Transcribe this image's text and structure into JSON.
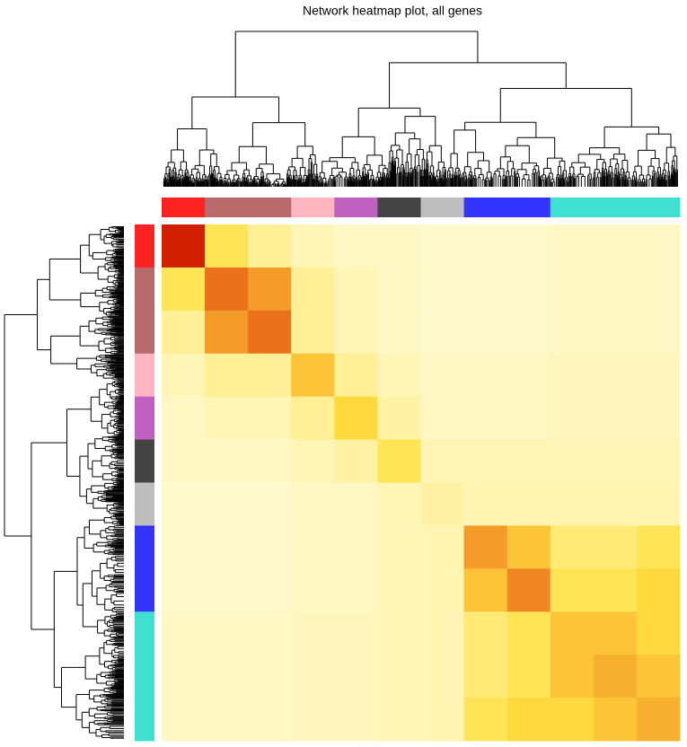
{
  "chart_data": {
    "type": "heatmap",
    "title": "Network heatmap plot, all genes",
    "colors": [
      "#ff2222",
      "#b86a6a",
      "#b86a6a",
      "#ffb6c1",
      "#c060c0",
      "#444444",
      "#bebebe",
      "#3333ff",
      "#3333ff",
      "#40e0d0",
      "#40e0d0",
      "#40e0d0"
    ],
    "colorscale": [
      "#fffbd8",
      "#ffe040",
      "#f08020",
      "#d02000"
    ],
    "values": [
      [
        0.7,
        0.2,
        0.1,
        0.05,
        0.03,
        0.03,
        0.02,
        0.02,
        0.02,
        0.03,
        0.03,
        0.03
      ],
      [
        0.2,
        0.5,
        0.4,
        0.1,
        0.05,
        0.03,
        0.02,
        0.02,
        0.02,
        0.03,
        0.03,
        0.03
      ],
      [
        0.1,
        0.4,
        0.5,
        0.1,
        0.05,
        0.03,
        0.02,
        0.02,
        0.02,
        0.03,
        0.03,
        0.03
      ],
      [
        0.05,
        0.1,
        0.1,
        0.3,
        0.1,
        0.05,
        0.03,
        0.03,
        0.03,
        0.04,
        0.04,
        0.04
      ],
      [
        0.03,
        0.05,
        0.05,
        0.1,
        0.25,
        0.08,
        0.03,
        0.03,
        0.03,
        0.04,
        0.04,
        0.04
      ],
      [
        0.03,
        0.03,
        0.03,
        0.05,
        0.08,
        0.2,
        0.05,
        0.05,
        0.05,
        0.05,
        0.05,
        0.05
      ],
      [
        0.02,
        0.02,
        0.02,
        0.03,
        0.03,
        0.05,
        0.08,
        0.06,
        0.06,
        0.06,
        0.06,
        0.06
      ],
      [
        0.02,
        0.02,
        0.02,
        0.03,
        0.03,
        0.05,
        0.06,
        0.4,
        0.3,
        0.15,
        0.15,
        0.2
      ],
      [
        0.02,
        0.02,
        0.02,
        0.03,
        0.03,
        0.05,
        0.06,
        0.3,
        0.45,
        0.2,
        0.2,
        0.25
      ],
      [
        0.03,
        0.03,
        0.03,
        0.04,
        0.04,
        0.05,
        0.06,
        0.15,
        0.2,
        0.3,
        0.3,
        0.25
      ],
      [
        0.03,
        0.03,
        0.03,
        0.04,
        0.04,
        0.05,
        0.06,
        0.15,
        0.2,
        0.3,
        0.35,
        0.3
      ],
      [
        0.03,
        0.03,
        0.03,
        0.04,
        0.04,
        0.05,
        0.06,
        0.2,
        0.25,
        0.25,
        0.3,
        0.35
      ]
    ]
  }
}
